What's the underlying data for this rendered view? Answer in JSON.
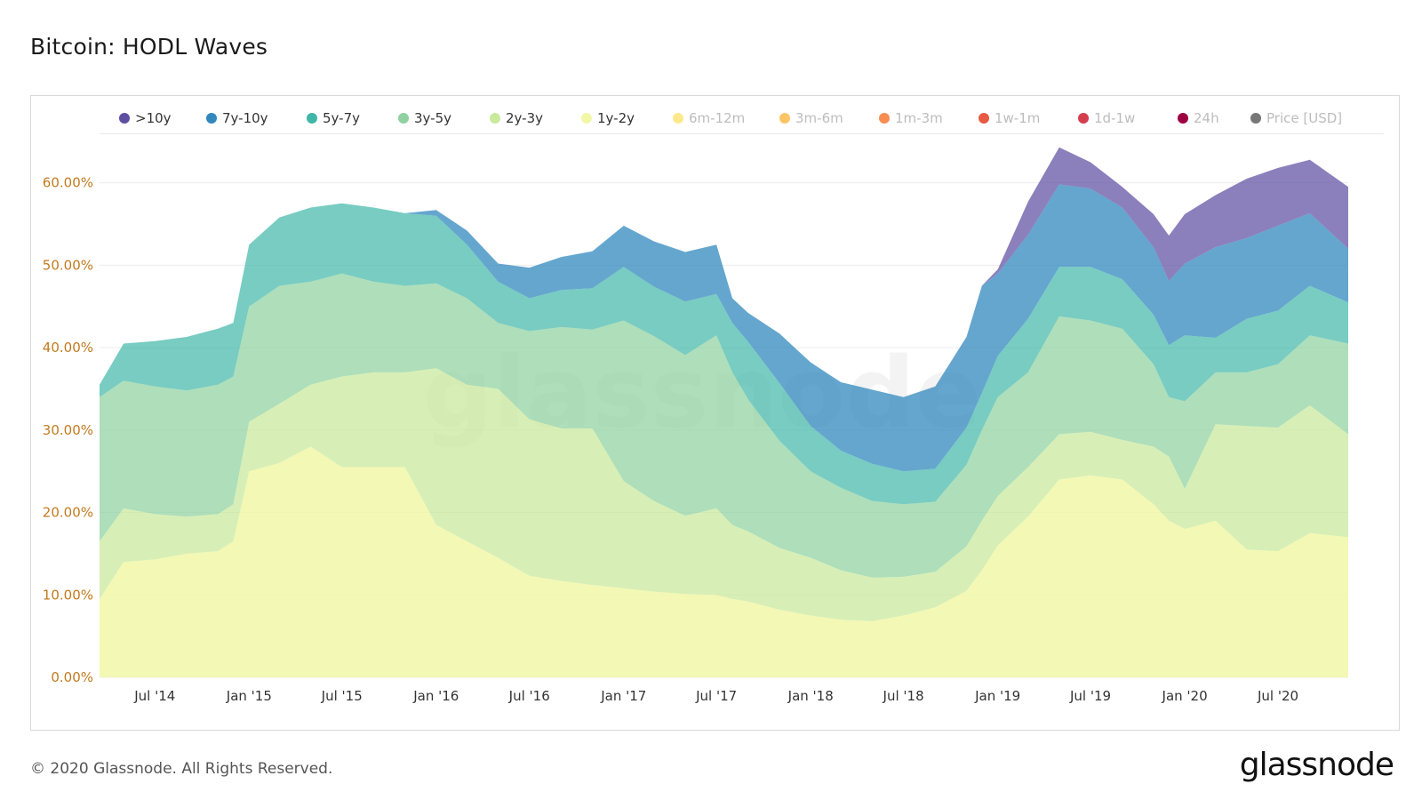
{
  "title": "Bitcoin: HODL Waves",
  "footer": "© 2020 Glassnode. All Rights Reserved.",
  "logo": "glassnode",
  "watermark": "glassnode",
  "legend": [
    {
      "label": ">10y",
      "color": "#5e4fa2",
      "active": true
    },
    {
      "label": "7y-10y",
      "color": "#3288bd",
      "active": true
    },
    {
      "label": "5y-7y",
      "color": "#3fb6a8",
      "active": true
    },
    {
      "label": "3y-5y",
      "color": "#8fd1a0",
      "active": true
    },
    {
      "label": "2y-3y",
      "color": "#c9ea9d",
      "active": true
    },
    {
      "label": "1y-2y",
      "color": "#f2f7a8",
      "active": true
    },
    {
      "label": "6m-12m",
      "color": "#fde98b",
      "active": false
    },
    {
      "label": "3m-6m",
      "color": "#fdc466",
      "active": false
    },
    {
      "label": "1m-3m",
      "color": "#f88d52",
      "active": false
    },
    {
      "label": "1w-1m",
      "color": "#e85a42",
      "active": false
    },
    {
      "label": "1d-1w",
      "color": "#d53e4f",
      "active": false
    },
    {
      "label": "24h",
      "color": "#9e0142",
      "active": false
    },
    {
      "label": "Price [USD]",
      "color": "#777777",
      "active": false
    }
  ],
  "chart_data": {
    "type": "area",
    "stacked": true,
    "y_tick_labels": [
      "0.00%",
      "10.00%",
      "20.00%",
      "30.00%",
      "40.00%",
      "50.00%",
      "60.00%"
    ],
    "y_ticks": [
      0,
      10,
      20,
      30,
      40,
      50,
      60
    ],
    "ylim": [
      0,
      66
    ],
    "x_tick_labels": [
      "Jul '14",
      "Jan '15",
      "Jul '15",
      "Jan '16",
      "Jul '16",
      "Jan '17",
      "Jul '17",
      "Jan '18",
      "Jul '18",
      "Jan '19",
      "Jul '19",
      "Jan '20",
      "Jul '20"
    ],
    "x_ticks": [
      "2014-07-01",
      "2015-01-01",
      "2015-07-01",
      "2016-01-01",
      "2016-07-01",
      "2017-01-01",
      "2017-07-01",
      "2018-01-01",
      "2018-07-01",
      "2019-01-01",
      "2019-07-01",
      "2020-01-01",
      "2020-07-01"
    ],
    "xlim": [
      "2014-03-15",
      "2020-11-15"
    ],
    "grid": "horizontal",
    "legend_position": "top",
    "x": [
      "2014-03-15",
      "2014-05-01",
      "2014-07-01",
      "2014-09-01",
      "2014-11-01",
      "2014-12-01",
      "2015-01-01",
      "2015-03-01",
      "2015-05-01",
      "2015-07-01",
      "2015-09-01",
      "2015-11-01",
      "2016-01-01",
      "2016-03-01",
      "2016-05-01",
      "2016-07-01",
      "2016-09-01",
      "2016-11-01",
      "2017-01-01",
      "2017-03-01",
      "2017-05-01",
      "2017-07-01",
      "2017-08-01",
      "2017-09-01",
      "2017-11-01",
      "2018-01-01",
      "2018-03-01",
      "2018-05-01",
      "2018-07-01",
      "2018-09-01",
      "2018-11-01",
      "2018-12-01",
      "2019-01-01",
      "2019-03-01",
      "2019-05-01",
      "2019-07-01",
      "2019-09-01",
      "2019-11-01",
      "2019-12-01",
      "2020-01-01",
      "2020-03-01",
      "2020-05-01",
      "2020-07-01",
      "2020-09-01",
      "2020-11-15"
    ],
    "series": [
      {
        "name": "1y-2y",
        "values": [
          9.5,
          14,
          14.3,
          15,
          15.3,
          16.5,
          25,
          26,
          28,
          25.5,
          25.5,
          25.5,
          18.5,
          16.5,
          14.5,
          12.3,
          11.7,
          11.2,
          10.8,
          10.4,
          10.1,
          10,
          9.5,
          9.2,
          8.2,
          7.5,
          7,
          6.8,
          7.5,
          8.5,
          10.5,
          13,
          16,
          19.5,
          24,
          24.5,
          24,
          21,
          19,
          18,
          19,
          15.5,
          15.3,
          17.5,
          17
        ]
      },
      {
        "name": "2y-3y",
        "values": [
          7,
          6.5,
          5.5,
          4.5,
          4.5,
          4.5,
          6,
          7.2,
          7.5,
          11,
          11.5,
          11.5,
          19,
          19,
          20.5,
          19,
          18.5,
          19,
          13,
          11,
          9.5,
          10.5,
          9,
          8.5,
          7.5,
          7,
          6,
          5.3,
          4.7,
          4.3,
          5.4,
          6,
          6,
          6,
          5.5,
          5.3,
          4.8,
          7,
          7.8,
          4.9,
          11.7,
          15,
          15,
          15.5,
          12.5
        ]
      },
      {
        "name": "3y-5y",
        "values": [
          17.5,
          15.5,
          15.5,
          15.3,
          15.7,
          15.5,
          14,
          14.3,
          12.5,
          12.5,
          11,
          10.5,
          10.3,
          10.5,
          8,
          10.7,
          12.3,
          12,
          19.5,
          20,
          19.5,
          21,
          18.5,
          16,
          13,
          10.5,
          10,
          9.3,
          8.8,
          8.5,
          9.9,
          11,
          12,
          11.5,
          14.3,
          13.5,
          13.5,
          10,
          7.2,
          10.6,
          6.3,
          6.5,
          7.7,
          8.5,
          11
        ]
      },
      {
        "name": "5y-7y",
        "values": [
          1.5,
          4.5,
          5.5,
          6.5,
          6.8,
          6.5,
          7.5,
          8.3,
          9,
          8.5,
          9,
          8.8,
          8.2,
          6.5,
          5,
          4,
          4.5,
          5,
          6.5,
          6,
          6.5,
          5,
          6,
          7,
          7,
          5.5,
          4.5,
          4.5,
          4,
          4,
          4.5,
          4.5,
          5,
          6.5,
          6,
          6.5,
          6,
          6,
          6.3,
          8,
          4.2,
          6.5,
          6.5,
          6,
          5
        ]
      },
      {
        "name": "7y-10y",
        "values": [
          0,
          0,
          0,
          0,
          0,
          0,
          0,
          0,
          0,
          0,
          0,
          0,
          0.7,
          1.7,
          2.2,
          3.7,
          4,
          4.5,
          5,
          5.5,
          6,
          6,
          3,
          3.5,
          6,
          7.7,
          8.3,
          9,
          9,
          10,
          11,
          13,
          10,
          10.2,
          10,
          9.5,
          8.7,
          8.2,
          7.8,
          8.7,
          11,
          9.8,
          10.3,
          8.8,
          6.5
        ]
      },
      {
        "name": ">10y",
        "values": [
          0,
          0,
          0,
          0,
          0,
          0,
          0,
          0,
          0,
          0,
          0,
          0,
          0,
          0,
          0,
          0,
          0,
          0,
          0,
          0,
          0,
          0,
          0,
          0,
          0,
          0,
          0,
          0,
          0,
          0,
          0,
          0,
          0.5,
          4,
          4.5,
          3.2,
          2.5,
          4,
          5.5,
          6,
          6.3,
          7.2,
          7,
          6.5,
          7.5
        ]
      }
    ]
  }
}
